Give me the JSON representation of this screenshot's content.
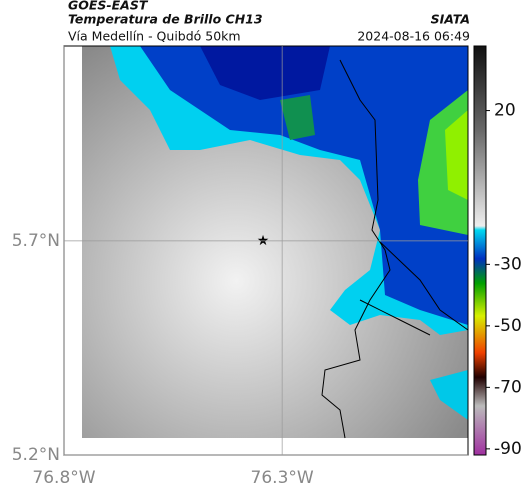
{
  "header": {
    "product": "GOES-EAST",
    "title": "Temperatura de Brillo CH13",
    "source": "SIATA",
    "subtitle": "Vía Medellín - Quibdó 50km",
    "timestamp": "2024-08-16 06:49"
  },
  "map": {
    "latlim": [
      5.2,
      6.155
    ],
    "lonlim": [
      -76.8,
      -75.874
    ],
    "lat_ticks": [
      {
        "value": 5.7,
        "label": "5.7°N"
      },
      {
        "value": 5.2,
        "label": "5.2°N"
      }
    ],
    "lon_ticks": [
      {
        "value": -76.8,
        "label": "76.8°W"
      },
      {
        "value": -76.3,
        "label": "76.3°W"
      }
    ]
  },
  "colorbar": {
    "lim": [
      -92,
      41
    ],
    "ticks": [
      20,
      -30,
      -50,
      -70,
      -90
    ]
  }
}
